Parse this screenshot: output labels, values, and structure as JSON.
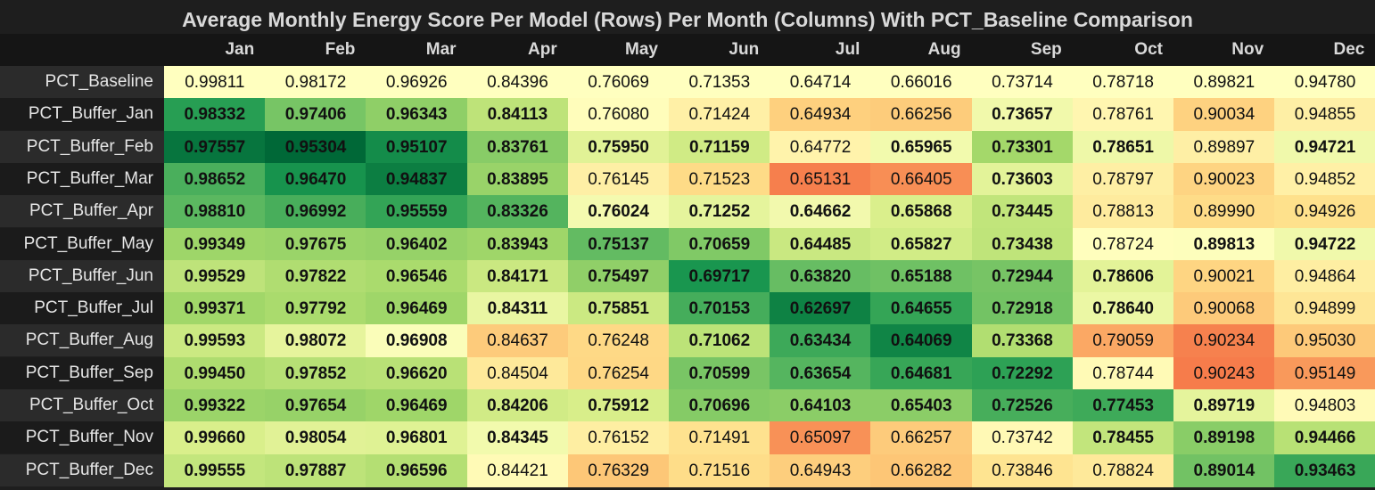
{
  "chart_data": {
    "type": "heatmap",
    "title": "Average Monthly Energy Score Per Model (Rows) Per Month (Columns) With PCT_Baseline Comparison",
    "columns": [
      "Jan",
      "Feb",
      "Mar",
      "Apr",
      "May",
      "Jun",
      "Jul",
      "Aug",
      "Sep",
      "Oct",
      "Nov",
      "Dec"
    ],
    "rows": [
      {
        "label": "PCT_Baseline",
        "values": [
          "0.99811",
          "0.98172",
          "0.96926",
          "0.84396",
          "0.76069",
          "0.71353",
          "0.64714",
          "0.66016",
          "0.73714",
          "0.78718",
          "0.89821",
          "0.94780"
        ],
        "bold": [
          0,
          0,
          0,
          0,
          0,
          0,
          0,
          0,
          0,
          0,
          0,
          0
        ]
      },
      {
        "label": "PCT_Buffer_Jan",
        "values": [
          "0.98332",
          "0.97406",
          "0.96343",
          "0.84113",
          "0.76080",
          "0.71424",
          "0.64934",
          "0.66256",
          "0.73657",
          "0.78761",
          "0.90034",
          "0.94855"
        ],
        "bold": [
          1,
          1,
          1,
          1,
          0,
          0,
          0,
          0,
          1,
          0,
          0,
          0
        ]
      },
      {
        "label": "PCT_Buffer_Feb",
        "values": [
          "0.97557",
          "0.95304",
          "0.95107",
          "0.83761",
          "0.75950",
          "0.71159",
          "0.64772",
          "0.65965",
          "0.73301",
          "0.78651",
          "0.89897",
          "0.94721"
        ],
        "bold": [
          1,
          1,
          1,
          1,
          1,
          1,
          0,
          1,
          1,
          1,
          0,
          1
        ]
      },
      {
        "label": "PCT_Buffer_Mar",
        "values": [
          "0.98652",
          "0.96470",
          "0.94837",
          "0.83895",
          "0.76145",
          "0.71523",
          "0.65131",
          "0.66405",
          "0.73603",
          "0.78797",
          "0.90023",
          "0.94852"
        ],
        "bold": [
          1,
          1,
          1,
          1,
          0,
          0,
          0,
          0,
          1,
          0,
          0,
          0
        ]
      },
      {
        "label": "PCT_Buffer_Apr",
        "values": [
          "0.98810",
          "0.96992",
          "0.95559",
          "0.83326",
          "0.76024",
          "0.71252",
          "0.64662",
          "0.65868",
          "0.73445",
          "0.78813",
          "0.89990",
          "0.94926"
        ],
        "bold": [
          1,
          1,
          1,
          1,
          1,
          1,
          1,
          1,
          1,
          0,
          0,
          0
        ]
      },
      {
        "label": "PCT_Buffer_May",
        "values": [
          "0.99349",
          "0.97675",
          "0.96402",
          "0.83943",
          "0.75137",
          "0.70659",
          "0.64485",
          "0.65827",
          "0.73438",
          "0.78724",
          "0.89813",
          "0.94722"
        ],
        "bold": [
          1,
          1,
          1,
          1,
          1,
          1,
          1,
          1,
          1,
          0,
          1,
          1
        ]
      },
      {
        "label": "PCT_Buffer_Jun",
        "values": [
          "0.99529",
          "0.97822",
          "0.96546",
          "0.84171",
          "0.75497",
          "0.69717",
          "0.63820",
          "0.65188",
          "0.72944",
          "0.78606",
          "0.90021",
          "0.94864"
        ],
        "bold": [
          1,
          1,
          1,
          1,
          1,
          1,
          1,
          1,
          1,
          1,
          0,
          0
        ]
      },
      {
        "label": "PCT_Buffer_Jul",
        "values": [
          "0.99371",
          "0.97792",
          "0.96469",
          "0.84311",
          "0.75851",
          "0.70153",
          "0.62697",
          "0.64655",
          "0.72918",
          "0.78640",
          "0.90068",
          "0.94899"
        ],
        "bold": [
          1,
          1,
          1,
          1,
          1,
          1,
          1,
          1,
          1,
          1,
          0,
          0
        ]
      },
      {
        "label": "PCT_Buffer_Aug",
        "values": [
          "0.99593",
          "0.98072",
          "0.96908",
          "0.84637",
          "0.76248",
          "0.71062",
          "0.63434",
          "0.64069",
          "0.73368",
          "0.79059",
          "0.90234",
          "0.95030"
        ],
        "bold": [
          1,
          1,
          1,
          0,
          0,
          1,
          1,
          1,
          1,
          0,
          0,
          0
        ]
      },
      {
        "label": "PCT_Buffer_Sep",
        "values": [
          "0.99450",
          "0.97852",
          "0.96620",
          "0.84504",
          "0.76254",
          "0.70599",
          "0.63654",
          "0.64681",
          "0.72292",
          "0.78744",
          "0.90243",
          "0.95149"
        ],
        "bold": [
          1,
          1,
          1,
          0,
          0,
          1,
          1,
          1,
          1,
          0,
          0,
          0
        ]
      },
      {
        "label": "PCT_Buffer_Oct",
        "values": [
          "0.99322",
          "0.97654",
          "0.96469",
          "0.84206",
          "0.75912",
          "0.70696",
          "0.64103",
          "0.65403",
          "0.72526",
          "0.77453",
          "0.89719",
          "0.94803"
        ],
        "bold": [
          1,
          1,
          1,
          1,
          1,
          1,
          1,
          1,
          1,
          1,
          1,
          0
        ]
      },
      {
        "label": "PCT_Buffer_Nov",
        "values": [
          "0.99660",
          "0.98054",
          "0.96801",
          "0.84345",
          "0.76152",
          "0.71491",
          "0.65097",
          "0.66257",
          "0.73742",
          "0.78455",
          "0.89198",
          "0.94466"
        ],
        "bold": [
          1,
          1,
          1,
          1,
          0,
          0,
          0,
          0,
          0,
          1,
          1,
          1
        ]
      },
      {
        "label": "PCT_Buffer_Dec",
        "values": [
          "0.99555",
          "0.97887",
          "0.96596",
          "0.84421",
          "0.76329",
          "0.71516",
          "0.64943",
          "0.66282",
          "0.73846",
          "0.78824",
          "0.89014",
          "0.93463"
        ],
        "bold": [
          1,
          1,
          1,
          0,
          0,
          0,
          0,
          0,
          0,
          0,
          1,
          1
        ]
      }
    ],
    "colors": {
      "scale": [
        "#006837",
        "#4cae5b",
        "#b7e075",
        "#ffffbf",
        "#fdbe70",
        "#ea5739"
      ],
      "background": "#1e1e1e",
      "text": "#111111",
      "header_text": "#d9d9d9"
    }
  }
}
